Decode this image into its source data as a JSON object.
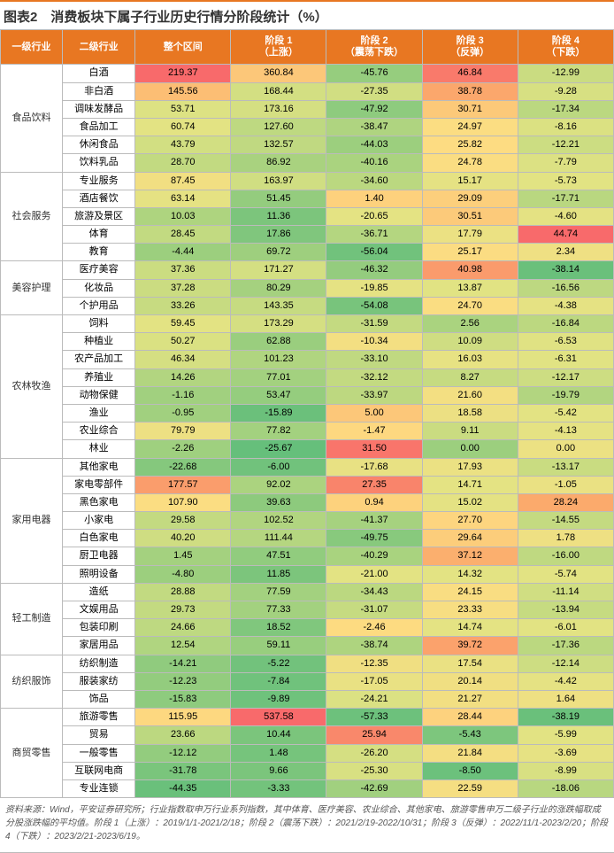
{
  "title": "图表2　消费板块下属子行业历史行情分阶段统计（%）",
  "columns": [
    "一级行业",
    "二级行业",
    "整个区间",
    "阶段 1\n（上涨）",
    "阶段 2\n（震荡下跌）",
    "阶段 3\n（反弹）",
    "阶段 4\n（下跌）"
  ],
  "groups": [
    {
      "cat": "食品饮料",
      "rows": [
        {
          "n": "白酒",
          "v": [
            219.37,
            360.84,
            -45.76,
            46.84,
            -12.99
          ]
        },
        {
          "n": "非白酒",
          "v": [
            145.56,
            168.44,
            -27.35,
            38.78,
            -9.28
          ]
        },
        {
          "n": "调味发酵品",
          "v": [
            53.71,
            173.16,
            -47.92,
            30.71,
            -17.34
          ]
        },
        {
          "n": "食品加工",
          "v": [
            60.74,
            127.6,
            -38.47,
            24.97,
            -8.16
          ]
        },
        {
          "n": "休闲食品",
          "v": [
            43.79,
            132.57,
            -44.03,
            25.82,
            -12.21
          ]
        },
        {
          "n": "饮料乳品",
          "v": [
            28.7,
            86.92,
            -40.16,
            24.78,
            -7.79
          ]
        }
      ]
    },
    {
      "cat": "社会服务",
      "rows": [
        {
          "n": "专业服务",
          "v": [
            87.45,
            163.97,
            -34.6,
            15.17,
            -5.73
          ]
        },
        {
          "n": "酒店餐饮",
          "v": [
            63.14,
            51.45,
            1.4,
            29.09,
            -17.71
          ]
        },
        {
          "n": "旅游及景区",
          "v": [
            10.03,
            11.36,
            -20.65,
            30.51,
            -4.6
          ]
        },
        {
          "n": "体育",
          "v": [
            28.45,
            17.86,
            -36.71,
            17.79,
            44.74
          ]
        },
        {
          "n": "教育",
          "v": [
            -4.44,
            69.72,
            -56.04,
            25.17,
            2.34
          ]
        }
      ]
    },
    {
      "cat": "美容护理",
      "rows": [
        {
          "n": "医疗美容",
          "v": [
            37.36,
            171.27,
            -46.32,
            40.98,
            -38.14
          ]
        },
        {
          "n": "化妆品",
          "v": [
            37.28,
            80.29,
            -19.85,
            13.87,
            -16.56
          ]
        },
        {
          "n": "个护用品",
          "v": [
            33.26,
            143.35,
            -54.08,
            24.7,
            -4.38
          ]
        }
      ]
    },
    {
      "cat": "农林牧渔",
      "rows": [
        {
          "n": "饲料",
          "v": [
            59.45,
            173.29,
            -31.59,
            2.56,
            -16.84
          ]
        },
        {
          "n": "种植业",
          "v": [
            50.27,
            62.88,
            -10.34,
            10.09,
            -6.53
          ]
        },
        {
          "n": "农产品加工",
          "v": [
            46.34,
            101.23,
            -33.1,
            16.03,
            -6.31
          ]
        },
        {
          "n": "养殖业",
          "v": [
            14.26,
            77.01,
            -32.12,
            8.27,
            -12.17
          ]
        },
        {
          "n": "动物保健",
          "v": [
            -1.16,
            53.47,
            -33.97,
            21.6,
            -19.79
          ]
        },
        {
          "n": "渔业",
          "v": [
            -0.95,
            -15.89,
            5.0,
            18.58,
            -5.42
          ]
        },
        {
          "n": "农业综合",
          "v": [
            79.79,
            77.82,
            -1.47,
            9.11,
            -4.13
          ]
        },
        {
          "n": "林业",
          "v": [
            -2.26,
            -25.67,
            31.5,
            0.0,
            0.0
          ]
        }
      ]
    },
    {
      "cat": "家用电器",
      "rows": [
        {
          "n": "其他家电",
          "v": [
            -22.68,
            -6.0,
            -17.68,
            17.93,
            -13.17
          ]
        },
        {
          "n": "家电零部件",
          "v": [
            177.57,
            92.02,
            27.35,
            14.71,
            -1.05
          ]
        },
        {
          "n": "黑色家电",
          "v": [
            107.9,
            39.63,
            0.94,
            15.02,
            28.24
          ]
        },
        {
          "n": "小家电",
          "v": [
            29.58,
            102.52,
            -41.37,
            27.7,
            -14.55
          ]
        },
        {
          "n": "白色家电",
          "v": [
            40.2,
            111.44,
            -49.75,
            29.64,
            1.78
          ]
        },
        {
          "n": "厨卫电器",
          "v": [
            1.45,
            47.51,
            -40.29,
            37.12,
            -16.0
          ]
        },
        {
          "n": "照明设备",
          "v": [
            -4.8,
            11.85,
            -21.0,
            14.32,
            -5.74
          ]
        }
      ]
    },
    {
      "cat": "轻工制造",
      "rows": [
        {
          "n": "造纸",
          "v": [
            28.88,
            77.59,
            -34.43,
            24.15,
            -11.14
          ]
        },
        {
          "n": "文娱用品",
          "v": [
            29.73,
            77.33,
            -31.07,
            23.33,
            -13.94
          ]
        },
        {
          "n": "包装印刷",
          "v": [
            24.66,
            18.52,
            -2.46,
            14.74,
            -6.01
          ]
        },
        {
          "n": "家居用品",
          "v": [
            12.54,
            59.11,
            -38.74,
            39.72,
            -17.36
          ]
        }
      ]
    },
    {
      "cat": "纺织服饰",
      "rows": [
        {
          "n": "纺织制造",
          "v": [
            -14.21,
            -5.22,
            -12.35,
            17.54,
            -12.14
          ]
        },
        {
          "n": "服装家纺",
          "v": [
            -12.23,
            -7.84,
            -17.05,
            20.14,
            -4.42
          ]
        },
        {
          "n": "饰品",
          "v": [
            -15.83,
            -9.89,
            -24.21,
            21.27,
            1.64
          ]
        }
      ]
    },
    {
      "cat": "商贸零售",
      "rows": [
        {
          "n": "旅游零售",
          "v": [
            115.95,
            537.58,
            -57.33,
            28.44,
            -38.19
          ]
        },
        {
          "n": "贸易",
          "v": [
            23.66,
            10.44,
            25.94,
            -5.43,
            -5.99
          ]
        },
        {
          "n": "一般零售",
          "v": [
            -12.12,
            1.48,
            -26.2,
            21.84,
            -3.69
          ]
        },
        {
          "n": "互联网电商",
          "v": [
            -31.78,
            9.66,
            -25.3,
            -8.5,
            -8.99
          ]
        },
        {
          "n": "专业连锁",
          "v": [
            -44.35,
            -3.33,
            -42.69,
            22.59,
            -18.06
          ]
        }
      ]
    }
  ],
  "footnote": "资料来源：Wind，平安证券研究所；行业指数取申万行业系列指数，其中体育、医疗美容、农业综合、其他家电、旅游零售申万二级子行业的涨跌幅取成分股涨跌幅的平均值。阶段 1（上涨）：2019/1/1-2021/2/18；阶段 2（震荡下跌）：2021/2/19-2022/10/31；阶段 3（反弹）：2022/11/1-2023/2/20；阶段 4（下跌）：2023/2/21-2023/6/19。",
  "heatmap": {
    "colors": [
      "#63be7b",
      "#a7d27f",
      "#e2e383",
      "#fddc82",
      "#fbab6c",
      "#f8696b"
    ],
    "col_ranges": [
      {
        "min": -50,
        "max": 220
      },
      {
        "min": -30,
        "max": 540
      },
      {
        "min": -60,
        "max": 35
      },
      {
        "min": -10,
        "max": 50
      },
      {
        "min": -40,
        "max": 45
      }
    ]
  }
}
